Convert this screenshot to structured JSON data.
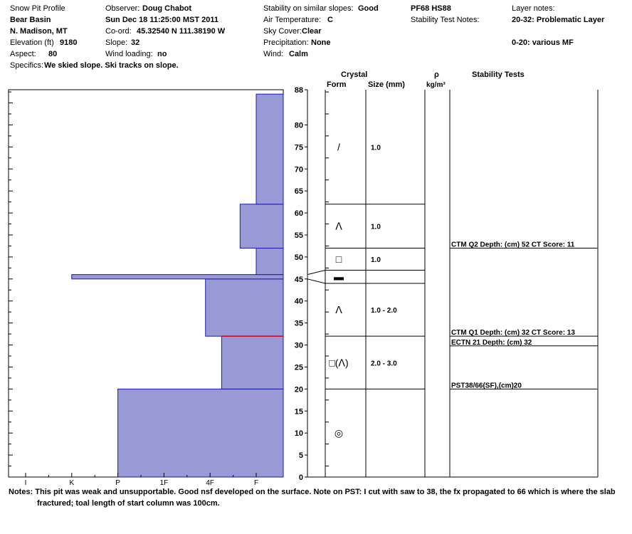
{
  "header": {
    "col1": [
      {
        "label": "Snow Pit Profile",
        "value": ""
      },
      {
        "label": "",
        "value": "Bear Basin"
      },
      {
        "label": "",
        "value": "N. Madison, MT"
      },
      {
        "label": "Elevation (ft)",
        "value": "9180"
      },
      {
        "label": "Aspect:",
        "value": "80"
      },
      {
        "label": "Specifics:",
        "value": "We skied slope. Ski tracks on slope."
      }
    ],
    "col2": [
      {
        "label": "Observer:",
        "value": "Doug Chabot"
      },
      {
        "label": "",
        "value": "Sun Dec 18 11:25:00 MST 2011"
      },
      {
        "label": "Co-ord:",
        "value": "45.32540 N 111.38190 W"
      },
      {
        "label": "Slope:",
        "value": "32"
      },
      {
        "label": "Wind loading:",
        "value": "no"
      }
    ],
    "col3": [
      {
        "label": "Stability on similar slopes:",
        "value": "Good"
      },
      {
        "label": "Air Temperature:",
        "value": "C"
      },
      {
        "label": "Sky Cover:",
        "value": "Clear"
      },
      {
        "label": "Precipitation:",
        "value": "None"
      },
      {
        "label": "Wind:",
        "value": "Calm"
      }
    ],
    "col4": [
      {
        "label": "",
        "value": "PF68 HS88"
      },
      {
        "label": "Stability Test Notes:",
        "value": ""
      }
    ],
    "col5": [
      {
        "label": "Layer notes:",
        "value": ""
      },
      {
        "label": "",
        "value": "20-32: Problematic Layer"
      },
      {
        "label": "",
        "value": ""
      },
      {
        "label": "",
        "value": "0-20: various MF"
      }
    ]
  },
  "column_headers": {
    "crystal": "Crystal",
    "form": "Form",
    "size": "Size (mm)",
    "rho": "ρ",
    "density_unit": "kg/m³",
    "stability": "Stability Tests"
  },
  "chart_data": {
    "type": "bar",
    "title": "",
    "xlabel": "",
    "ylabel": "",
    "ylim": [
      0,
      88
    ],
    "yticks": [
      0,
      5,
      10,
      15,
      20,
      25,
      30,
      35,
      40,
      45,
      50,
      55,
      60,
      65,
      70,
      75,
      80,
      88
    ],
    "hardness_scale": [
      "I",
      "K",
      "P",
      "1F",
      "4F",
      "F"
    ],
    "hardness_unit": "hand hardness index (I=0 ... F=5, 6=edge of plot)",
    "hardness_layers": [
      {
        "bottom": 0,
        "top": 20,
        "hardness": 2.0
      },
      {
        "bottom": 20,
        "top": 32,
        "hardness": 4.25
      },
      {
        "bottom": 32,
        "top": 45,
        "hardness": 3.9
      },
      {
        "bottom": 45,
        "top": 46,
        "hardness": 1.0
      },
      {
        "bottom": 46,
        "top": 52,
        "hardness": 5.0
      },
      {
        "bottom": 52,
        "top": 62,
        "hardness": 4.65
      },
      {
        "bottom": 62,
        "top": 87,
        "hardness": 5.0
      }
    ],
    "highlight_line": {
      "depth": 32,
      "color": "#e0001a"
    },
    "layer_boundaries": [
      20,
      32,
      44,
      47,
      52,
      62
    ],
    "crystal_layers": [
      {
        "glyph": "◎",
        "size": "",
        "depth": 10
      },
      {
        "glyph": "□(ᐱ)",
        "size": "2.0 - 3.0",
        "depth": 26
      },
      {
        "glyph": "ⴷ",
        "size": "1.0 - 2.0",
        "depth": 38
      },
      {
        "glyph": "▬",
        "size": "",
        "depth": 45.5
      },
      {
        "glyph": "□",
        "size": "1.0",
        "depth": 49.5
      },
      {
        "glyph": "ⴷ",
        "size": "1.0",
        "depth": 57
      },
      {
        "glyph": "/",
        "size": "1.0",
        "depth": 75
      }
    ],
    "stability_tests": [
      {
        "text": "PST38/66(SF),(cm)20",
        "depth": 20,
        "line": true
      },
      {
        "text": "ECTN 21  Depth: (cm) 32",
        "depth": 29.8,
        "line": true
      },
      {
        "text": "CTM Q1 Depth: (cm) 32 CT Score: 13",
        "depth": 32,
        "line": true
      },
      {
        "text": "CTM Q2 Depth: (cm) 52 CT Score: 11",
        "depth": 52,
        "line": true
      }
    ],
    "colors": {
      "fill": "#9999d6",
      "edge": "#1a1aaa"
    }
  },
  "notes": {
    "label": "Notes:",
    "line1": "This pit was weak and unsupportable.  Good nsf developed on the surface. Note on PST: I cut with saw to 38, the fx propagated to 66 which is where the slab",
    "line2": "fractured; toal length of start column was 100cm."
  }
}
